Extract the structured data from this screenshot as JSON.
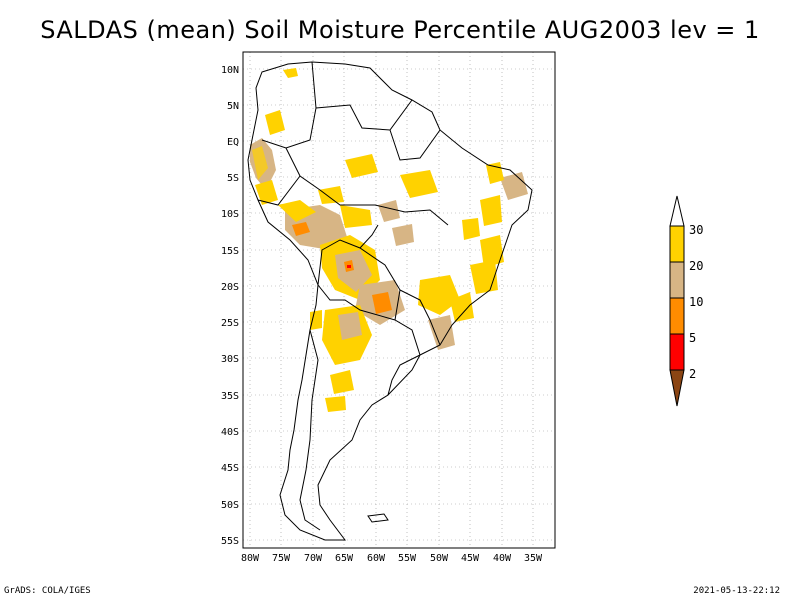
{
  "title": "SALDAS (mean) Soil Moisture Percentile AUG2003 lev = 1",
  "lat_labels": [
    "10N",
    "5N",
    "EQ",
    "5S",
    "10S",
    "15S",
    "20S",
    "25S",
    "30S",
    "35S",
    "40S",
    "45S",
    "50S",
    "55S"
  ],
  "lon_labels": [
    "80W",
    "75W",
    "70W",
    "65W",
    "60W",
    "55W",
    "50W",
    "45W",
    "40W",
    "35W"
  ],
  "legend": {
    "levels": [
      "30",
      "20",
      "10",
      "5",
      "2"
    ],
    "colors": {
      "above_30": "#ffffff",
      "20_30": "#ffd200",
      "10_20": "#d7b585",
      "5_10": "#ff8c00",
      "2_5": "#ff0000",
      "below_2": "#8b4513"
    }
  },
  "footer": {
    "left": "GrADS: COLA/IGES",
    "right": "2021-05-13-22:12"
  }
}
